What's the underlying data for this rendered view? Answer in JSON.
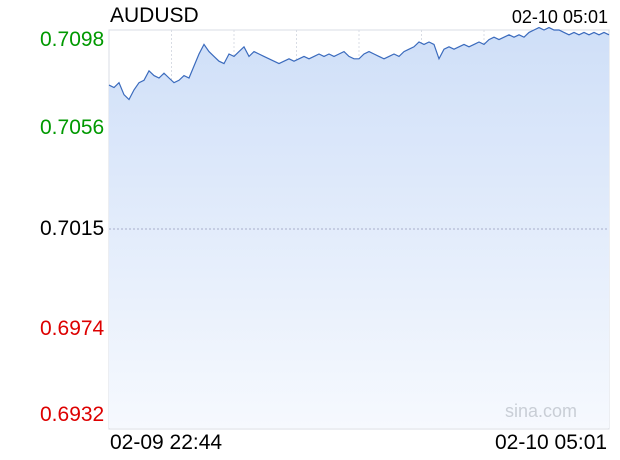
{
  "symbol": "AUDUSD",
  "current_time": "02-10 05:01",
  "watermark": "sina.com",
  "colors": {
    "up": "#009900",
    "down": "#dd0000",
    "neutral": "#000000",
    "line": "#3b6bbd",
    "fill_top": "#cfdff8",
    "fill_bottom": "#f6f9fe",
    "grid": "#d8dce4",
    "baseline": "#a7aecb"
  },
  "chart_data": {
    "type": "area",
    "title": "AUDUSD",
    "y_ticks": [
      {
        "label": "0.7098",
        "value": 0.7098,
        "tone": "up"
      },
      {
        "label": "0.7056",
        "value": 0.7056,
        "tone": "up"
      },
      {
        "label": "0.7015",
        "value": 0.7015,
        "tone": "neutral"
      },
      {
        "label": "0.6974",
        "value": 0.6974,
        "tone": "down"
      },
      {
        "label": "0.6932",
        "value": 0.6932,
        "tone": "down"
      }
    ],
    "ylim": [
      0.6932,
      0.7098
    ],
    "reference_value": 0.7015,
    "x_labels": [
      "02-09 22:44",
      "02-10 05:01"
    ],
    "x_range": [
      "02-09 22:44",
      "02-10 05:01"
    ],
    "grid": true,
    "series": [
      {
        "values": [
          0.7075,
          0.7074,
          0.7076,
          0.7071,
          0.7069,
          0.7073,
          0.7076,
          0.7077,
          0.7081,
          0.7079,
          0.7078,
          0.708,
          0.7078,
          0.7076,
          0.7077,
          0.7079,
          0.7078,
          0.7083,
          0.7088,
          0.7092,
          0.7089,
          0.7087,
          0.7085,
          0.7084,
          0.7088,
          0.7087,
          0.7089,
          0.7091,
          0.7087,
          0.7089,
          0.7088,
          0.7087,
          0.7086,
          0.7085,
          0.7084,
          0.7085,
          0.7086,
          0.7085,
          0.7086,
          0.7087,
          0.7086,
          0.7087,
          0.7088,
          0.7087,
          0.7088,
          0.7087,
          0.7088,
          0.7089,
          0.7087,
          0.7086,
          0.7086,
          0.7088,
          0.7089,
          0.7088,
          0.7087,
          0.7086,
          0.7087,
          0.7088,
          0.7087,
          0.7089,
          0.709,
          0.7091,
          0.7093,
          0.7092,
          0.7093,
          0.7092,
          0.7086,
          0.709,
          0.7091,
          0.709,
          0.7091,
          0.7092,
          0.7091,
          0.7092,
          0.7093,
          0.7092,
          0.7094,
          0.7095,
          0.7094,
          0.7095,
          0.7096,
          0.7095,
          0.7096,
          0.7095,
          0.7097,
          0.7098,
          0.7099,
          0.7098,
          0.7099,
          0.7098,
          0.7098,
          0.7097,
          0.7096,
          0.7097,
          0.7096,
          0.7097,
          0.7096,
          0.7097,
          0.7096,
          0.7097,
          0.7096
        ]
      }
    ]
  }
}
